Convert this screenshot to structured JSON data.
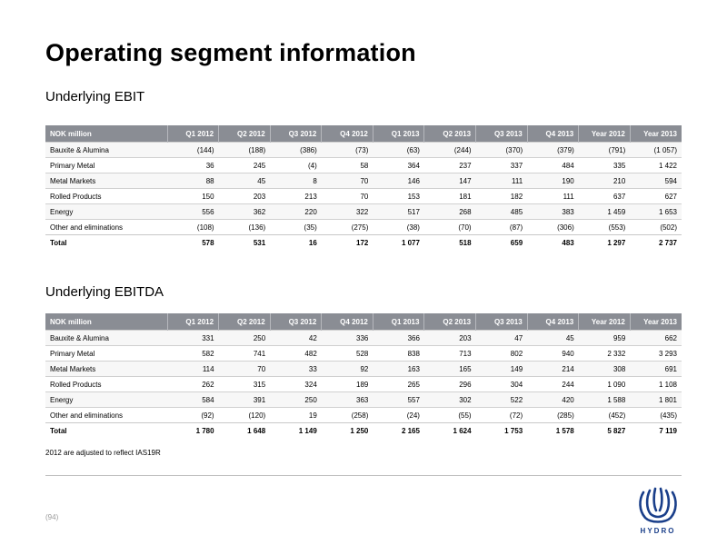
{
  "title": "Operating segment information",
  "ebit": {
    "subtitle": "Underlying EBIT",
    "header": [
      "NOK million",
      "Q1 2012",
      "Q2 2012",
      "Q3 2012",
      "Q4 2012",
      "Q1 2013",
      "Q2 2013",
      "Q3 2013",
      "Q4 2013",
      "Year 2012",
      "Year 2013"
    ],
    "rows": [
      [
        "Bauxite & Alumina",
        "(144)",
        "(188)",
        "(386)",
        "(73)",
        "(63)",
        "(244)",
        "(370)",
        "(379)",
        "(791)",
        "(1 057)"
      ],
      [
        "Primary Metal",
        "36",
        "245",
        "(4)",
        "58",
        "364",
        "237",
        "337",
        "484",
        "335",
        "1 422"
      ],
      [
        "Metal Markets",
        "88",
        "45",
        "8",
        "70",
        "146",
        "147",
        "111",
        "190",
        "210",
        "594"
      ],
      [
        "Rolled Products",
        "150",
        "203",
        "213",
        "70",
        "153",
        "181",
        "182",
        "111",
        "637",
        "627"
      ],
      [
        "Energy",
        "556",
        "362",
        "220",
        "322",
        "517",
        "268",
        "485",
        "383",
        "1 459",
        "1 653"
      ],
      [
        "Other and eliminations",
        "(108)",
        "(136)",
        "(35)",
        "(275)",
        "(38)",
        "(70)",
        "(87)",
        "(306)",
        "(553)",
        "(502)"
      ],
      [
        "Total",
        "578",
        "531",
        "16",
        "172",
        "1 077",
        "518",
        "659",
        "483",
        "1 297",
        "2 737"
      ]
    ]
  },
  "ebitda": {
    "subtitle": "Underlying EBITDA",
    "header": [
      "NOK million",
      "Q1 2012",
      "Q2 2012",
      "Q3 2012",
      "Q4 2012",
      "Q1 2013",
      "Q2 2013",
      "Q3 2013",
      "Q4 2013",
      "Year 2012",
      "Year 2013"
    ],
    "rows": [
      [
        "Bauxite & Alumina",
        "331",
        "250",
        "42",
        "336",
        "366",
        "203",
        "47",
        "45",
        "959",
        "662"
      ],
      [
        "Primary Metal",
        "582",
        "741",
        "482",
        "528",
        "838",
        "713",
        "802",
        "940",
        "2 332",
        "3 293"
      ],
      [
        "Metal Markets",
        "114",
        "70",
        "33",
        "92",
        "163",
        "165",
        "149",
        "214",
        "308",
        "691"
      ],
      [
        "Rolled Products",
        "262",
        "315",
        "324",
        "189",
        "265",
        "296",
        "304",
        "244",
        "1 090",
        "1 108"
      ],
      [
        "Energy",
        "584",
        "391",
        "250",
        "363",
        "557",
        "302",
        "522",
        "420",
        "1 588",
        "1 801"
      ],
      [
        "Other and eliminations",
        "(92)",
        "(120)",
        "19",
        "(258)",
        "(24)",
        "(55)",
        "(72)",
        "(285)",
        "(452)",
        "(435)"
      ],
      [
        "Total",
        "1 780",
        "1 648",
        "1 149",
        "1 250",
        "2 165",
        "1 624",
        "1 753",
        "1 578",
        "5 827",
        "7 119"
      ]
    ]
  },
  "footnote": "2012 are adjusted to reflect IAS19R",
  "page_number": "(94)",
  "logo": {
    "icon": "hydro-logo-icon",
    "text": "HYDRO",
    "color": "#1a3f8a"
  }
}
